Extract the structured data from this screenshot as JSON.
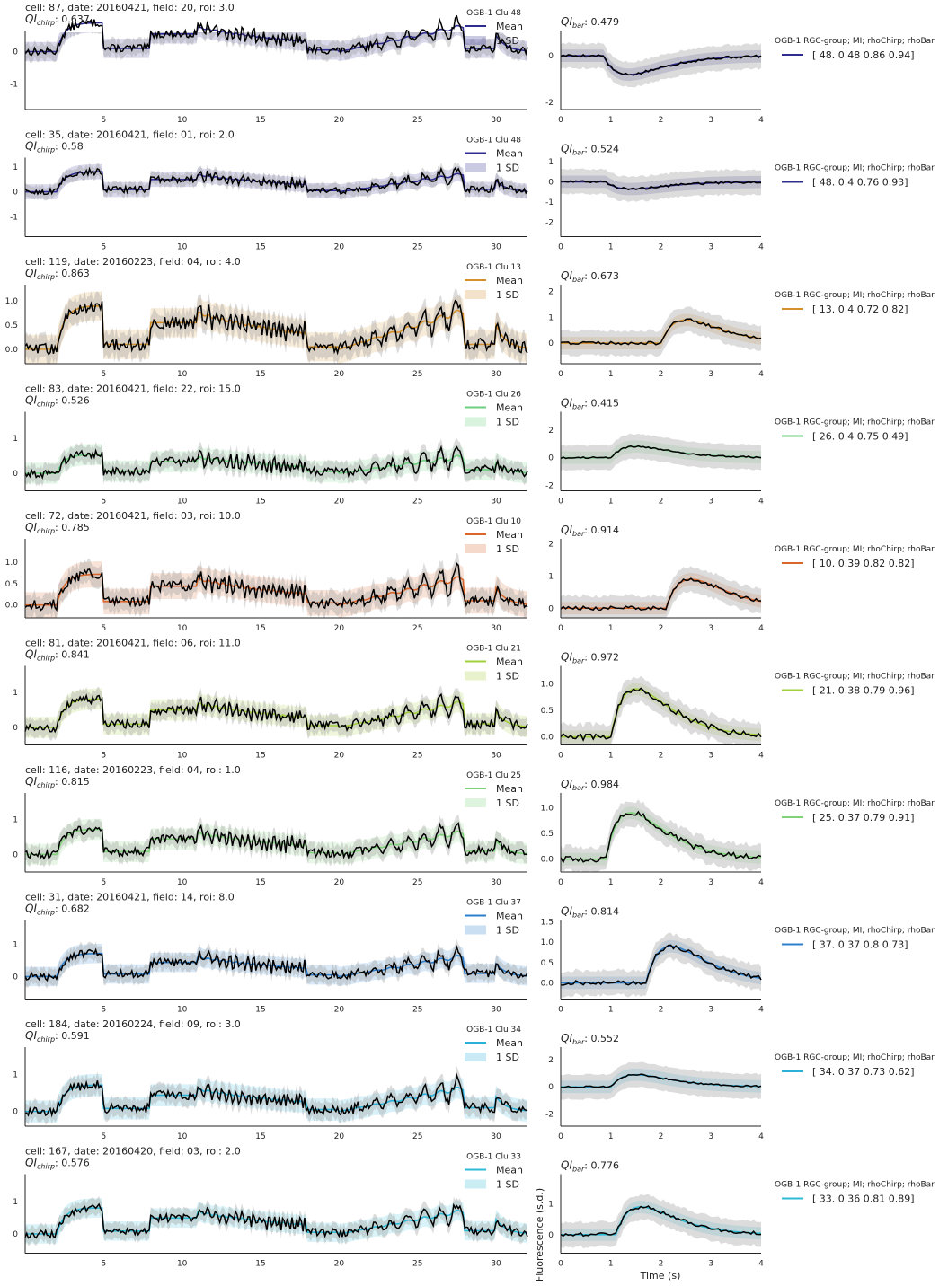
{
  "figure": {
    "ylabel": "Fluorescence (s.d.)",
    "xlabel": "Time (s)",
    "legend_header": "OGB-1 RGC-group; MI; rhoChirp; rhoBar",
    "chirp_legend_mean": "Mean",
    "chirp_legend_sd": "1 SD"
  },
  "chart_data": [
    {
      "type": "line",
      "panel": "chirp",
      "title": "cell: 87, date: 20160421, field: 20, roi: 3.0",
      "qi_label": "QI",
      "qi_sub": "chirp",
      "qi": "0.637",
      "legend_title": "OGB-1 Clu 48",
      "color": "#2e2d8f",
      "xticks": [
        5,
        10,
        15,
        20,
        25,
        30
      ],
      "yticks": [
        "0",
        "-1"
      ],
      "ylim": [
        -1.8,
        0.6
      ],
      "xlim": [
        0,
        32
      ]
    },
    {
      "type": "line",
      "panel": "bar",
      "qi_label": "QI",
      "qi_sub": "bar",
      "qi": "0.479",
      "color": "#2e2d8f",
      "xticks": [
        0,
        1,
        2,
        3,
        4
      ],
      "yticks": [
        "0",
        "-2"
      ],
      "ylim": [
        -2.3,
        1.0
      ],
      "xlim": [
        0,
        4
      ],
      "legend_values": "[ 48.     0.48   0.86   0.94]"
    },
    {
      "type": "line",
      "panel": "chirp",
      "title": "cell: 35, date: 20160421, field: 01, roi: 2.0",
      "qi_label": "QI",
      "qi_sub": "chirp",
      "qi": "0.58",
      "legend_title": "OGB-1 Clu 48",
      "color": "#2e2d8f",
      "xticks": [
        5,
        10,
        15,
        20,
        25,
        30
      ],
      "yticks": [
        "1",
        "0",
        "-1"
      ],
      "ylim": [
        -1.8,
        1.3
      ],
      "xlim": [
        0,
        32
      ]
    },
    {
      "type": "line",
      "panel": "bar",
      "qi_label": "QI",
      "qi_sub": "bar",
      "qi": "0.524",
      "color": "#2e2d8f",
      "xticks": [
        0,
        1,
        2,
        3,
        4
      ],
      "yticks": [
        "1",
        "0",
        "-1",
        "-2"
      ],
      "ylim": [
        -2.7,
        1.1
      ],
      "xlim": [
        0,
        4
      ],
      "legend_values": "[ 48.     0.4    0.76   0.93]"
    },
    {
      "type": "line",
      "panel": "chirp",
      "title": "cell: 119, date: 20160223, field: 04, roi: 4.0",
      "qi_label": "QI",
      "qi_sub": "chirp",
      "qi": "0.863",
      "legend_title": "OGB-1 Clu 13",
      "color": "#d4902c",
      "xticks": [
        5,
        10,
        15,
        20,
        25,
        30
      ],
      "yticks": [
        "1.0",
        "0.5",
        "0.0"
      ],
      "ylim": [
        -0.3,
        1.3
      ],
      "xlim": [
        0,
        32
      ]
    },
    {
      "type": "line",
      "panel": "bar",
      "qi_label": "QI",
      "qi_sub": "bar",
      "qi": "0.673",
      "color": "#d4902c",
      "xticks": [
        0,
        1,
        2,
        3,
        4
      ],
      "yticks": [
        "2",
        "1",
        "0"
      ],
      "ylim": [
        -0.8,
        2.2
      ],
      "xlim": [
        0,
        4
      ],
      "legend_values": "[ 13.     0.4    0.72   0.82]"
    },
    {
      "type": "line",
      "panel": "chirp",
      "title": "cell: 83, date: 20160421, field: 22, roi: 15.0",
      "qi_label": "QI",
      "qi_sub": "chirp",
      "qi": "0.526",
      "legend_title": "OGB-1 Clu 26",
      "color": "#6ccf7f",
      "xticks": [
        5,
        10,
        15,
        20,
        25,
        30
      ],
      "yticks": [
        "1",
        "0"
      ],
      "ylim": [
        -0.5,
        1.7
      ],
      "xlim": [
        0,
        32
      ]
    },
    {
      "type": "line",
      "panel": "bar",
      "qi_label": "QI",
      "qi_sub": "bar",
      "qi": "0.415",
      "color": "#6ccf7f",
      "xticks": [
        0,
        1,
        2,
        3,
        4
      ],
      "yticks": [
        "2",
        "0",
        "-2"
      ],
      "ylim": [
        -2.4,
        3.2
      ],
      "xlim": [
        0,
        4
      ],
      "legend_values": "[ 26.     0.4    0.75   0.49]"
    },
    {
      "type": "line",
      "panel": "chirp",
      "title": "cell: 72, date: 20160421, field: 03, roi: 10.0",
      "qi_label": "QI",
      "qi_sub": "chirp",
      "qi": "0.785",
      "legend_title": "OGB-1 Clu 10",
      "color": "#d9662b",
      "xticks": [
        5,
        10,
        15,
        20,
        25,
        30
      ],
      "yticks": [
        "1.0",
        "0.5",
        "0.0"
      ],
      "ylim": [
        -0.3,
        1.5
      ],
      "xlim": [
        0,
        32
      ]
    },
    {
      "type": "line",
      "panel": "bar",
      "qi_label": "QI",
      "qi_sub": "bar",
      "qi": "0.914",
      "color": "#d9662b",
      "xticks": [
        0,
        1,
        2,
        3,
        4
      ],
      "yticks": [
        "2",
        "1",
        "0"
      ],
      "ylim": [
        -0.3,
        2.1
      ],
      "xlim": [
        0,
        4
      ],
      "legend_values": "[ 10.     0.39   0.82   0.82]"
    },
    {
      "type": "line",
      "panel": "chirp",
      "title": "cell: 81, date: 20160421, field: 06, roi: 11.0",
      "qi_label": "QI",
      "qi_sub": "chirp",
      "qi": "0.841",
      "legend_title": "OGB-1 Clu 21",
      "color": "#a2cf3c",
      "xticks": [
        5,
        10,
        15,
        20,
        25,
        30
      ],
      "yticks": [
        "1",
        "0"
      ],
      "ylim": [
        -0.5,
        1.7
      ],
      "xlim": [
        0,
        32
      ]
    },
    {
      "type": "line",
      "panel": "bar",
      "qi_label": "QI",
      "qi_sub": "bar",
      "qi": "0.972",
      "color": "#a2cf3c",
      "xticks": [
        0,
        1,
        2,
        3,
        4
      ],
      "yticks": [
        "1.0",
        "0.5",
        "0.0"
      ],
      "ylim": [
        -0.15,
        1.3
      ],
      "xlim": [
        0,
        4
      ],
      "legend_values": "[ 21.     0.38   0.79   0.96]"
    },
    {
      "type": "line",
      "panel": "chirp",
      "title": "cell: 116, date: 20160223, field: 04, roi: 1.0",
      "qi_label": "QI",
      "qi_sub": "chirp",
      "qi": "0.815",
      "legend_title": "OGB-1 Clu 25",
      "color": "#7fd27a",
      "xticks": [
        5,
        10,
        15,
        20,
        25,
        30
      ],
      "yticks": [
        "1",
        "0"
      ],
      "ylim": [
        -0.5,
        1.7
      ],
      "xlim": [
        0,
        32
      ]
    },
    {
      "type": "line",
      "panel": "bar",
      "qi_label": "QI",
      "qi_sub": "bar",
      "qi": "0.984",
      "color": "#7fd27a",
      "xticks": [
        0,
        1,
        2,
        3,
        4
      ],
      "yticks": [
        "1.0",
        "0.5",
        "0.0"
      ],
      "ylim": [
        -0.25,
        1.25
      ],
      "xlim": [
        0,
        4
      ],
      "legend_values": "[ 25.     0.37   0.79   0.91]"
    },
    {
      "type": "line",
      "panel": "chirp",
      "title": "cell: 31, date: 20160421, field: 14, roi: 8.0",
      "qi_label": "QI",
      "qi_sub": "chirp",
      "qi": "0.682",
      "legend_title": "OGB-1 Clu 37",
      "color": "#2d7fcc",
      "xticks": [
        5,
        10,
        15,
        20,
        25,
        30
      ],
      "yticks": [
        "1",
        "0"
      ],
      "ylim": [
        -0.7,
        1.7
      ],
      "xlim": [
        0,
        32
      ]
    },
    {
      "type": "line",
      "panel": "bar",
      "qi_label": "QI",
      "qi_sub": "bar",
      "qi": "0.814",
      "color": "#2d7fcc",
      "xticks": [
        0,
        1,
        2,
        3,
        4
      ],
      "yticks": [
        "1.5",
        "1.0",
        "0.5",
        "0.0"
      ],
      "ylim": [
        -0.4,
        1.5
      ],
      "xlim": [
        0,
        4
      ],
      "legend_values": "[ 37.     0.37   0.8    0.73]"
    },
    {
      "type": "line",
      "panel": "chirp",
      "title": "cell: 184, date: 20160224, field: 09, roi: 3.0",
      "qi_label": "QI",
      "qi_sub": "chirp",
      "qi": "0.591",
      "legend_title": "OGB-1 Clu 34",
      "color": "#2bb0d8",
      "xticks": [
        5,
        10,
        15,
        20,
        25,
        30
      ],
      "yticks": [
        "1",
        "0"
      ],
      "ylim": [
        -0.4,
        1.7
      ],
      "xlim": [
        0,
        32
      ]
    },
    {
      "type": "line",
      "panel": "bar",
      "qi_label": "QI",
      "qi_sub": "bar",
      "qi": "0.552",
      "color": "#2bb0d8",
      "xticks": [
        0,
        1,
        2,
        3,
        4
      ],
      "yticks": [
        "2",
        "0",
        "-2"
      ],
      "ylim": [
        -2.9,
        2.8
      ],
      "xlim": [
        0,
        4
      ],
      "legend_values": "[ 34.     0.37   0.73   0.62]"
    },
    {
      "type": "line",
      "panel": "chirp",
      "title": "cell: 167, date: 20160420, field: 03, roi: 2.0",
      "qi_label": "QI",
      "qi_sub": "chirp",
      "qi": "0.576",
      "legend_title": "OGB-1 Clu 33",
      "color": "#2fbad6",
      "xticks": [
        5,
        10,
        15,
        20,
        25,
        30
      ],
      "yticks": [
        "1",
        "0"
      ],
      "ylim": [
        -0.6,
        1.8
      ],
      "xlim": [
        0,
        32
      ]
    },
    {
      "type": "line",
      "panel": "bar",
      "qi_label": "QI",
      "qi_sub": "bar",
      "qi": "0.776",
      "color": "#2fbad6",
      "xticks": [
        0,
        1,
        2,
        3,
        4
      ],
      "yticks": [
        "1",
        "0"
      ],
      "ylim": [
        -0.6,
        1.9
      ],
      "xlim": [
        0,
        4
      ],
      "legend_values": "[ 33.     0.36   0.81   0.89]"
    }
  ]
}
